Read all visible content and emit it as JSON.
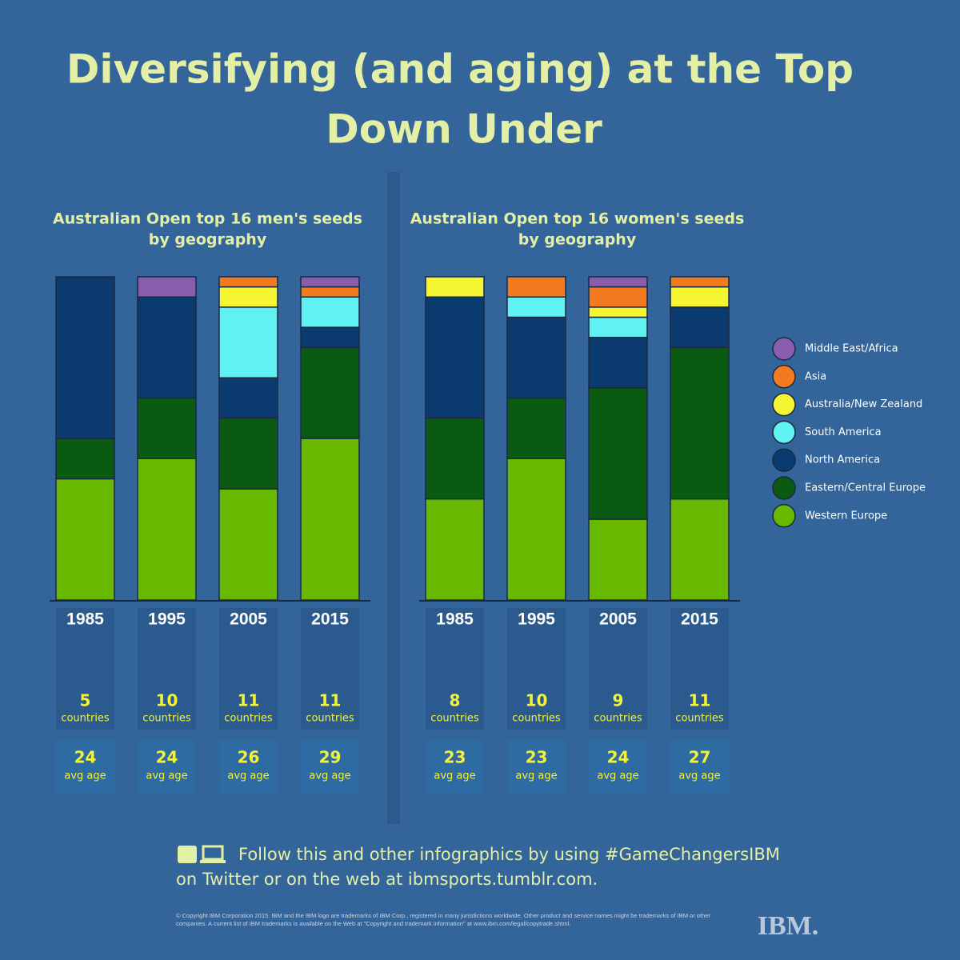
{
  "title": [
    "Diversifying (and aging) at the Top",
    "Down Under"
  ],
  "footer": [
    "Follow this and other infographics by using #GameChangersIBM",
    "on Twitter or on the web at ibmsports.tumblr.com."
  ],
  "copyright": "© Copyright IBM Corporation 2015. IBM and the IBM logo are trademarks of IBM Corp., registered in many jurisdictions worldwide. Other product and service names might be trademarks of IBM or other companies. A current list of IBM trademarks is available on the Web at \"Copyright and trademark information\" at www.ibm.com/legal/copytrade.shtml.",
  "logo": "IBM.",
  "chart_data": [
    {
      "type": "stacked_bar",
      "title": [
        "Australian Open top 16 men's seeds",
        "by geography"
      ],
      "categories": [
        "1985",
        "1995",
        "2005",
        "2015"
      ],
      "series": [
        {
          "name": "Middle East/Africa",
          "color": "#8a5cae",
          "values": [
            0,
            1,
            0,
            0.5
          ]
        },
        {
          "name": "Asia",
          "color": "#f47a20",
          "values": [
            0,
            0,
            0.5,
            0.5
          ]
        },
        {
          "name": "Australia/New Zealand",
          "color": "#f5f531",
          "values": [
            0,
            0,
            1,
            0
          ]
        },
        {
          "name": "South America",
          "color": "#60f2f2",
          "values": [
            0,
            0,
            3.5,
            1.5
          ]
        },
        {
          "name": "North America",
          "color": "#0b3a6e",
          "values": [
            8,
            5,
            2,
            1
          ]
        },
        {
          "name": "Eastern/Central Europe",
          "color": "#0a5a12",
          "values": [
            2,
            3,
            3.5,
            4.5
          ]
        },
        {
          "name": "Western Europe",
          "color": "#68b800",
          "values": [
            6,
            7,
            5.5,
            8
          ]
        }
      ],
      "countries": [
        5,
        10,
        11,
        11
      ],
      "countries_label": "countries",
      "avg_age": [
        24,
        24,
        26,
        29
      ],
      "avg_age_label": "avg age"
    },
    {
      "type": "stacked_bar",
      "title": [
        "Australian Open top 16 women's seeds",
        "by geography"
      ],
      "categories": [
        "1985",
        "1995",
        "2005",
        "2015"
      ],
      "series": [
        {
          "name": "Middle East/Africa",
          "color": "#8a5cae",
          "values": [
            0,
            0,
            0.5,
            0
          ]
        },
        {
          "name": "Asia",
          "color": "#f47a20",
          "values": [
            0,
            1,
            1,
            0.5
          ]
        },
        {
          "name": "Australia/New Zealand",
          "color": "#f5f531",
          "values": [
            1,
            0,
            0.5,
            1
          ]
        },
        {
          "name": "South America",
          "color": "#60f2f2",
          "values": [
            0,
            1,
            1,
            0
          ]
        },
        {
          "name": "North America",
          "color": "#0b3a6e",
          "values": [
            6,
            4,
            2.5,
            2
          ]
        },
        {
          "name": "Eastern/Central Europe",
          "color": "#0a5a12",
          "values": [
            4,
            3,
            6.5,
            7.5
          ]
        },
        {
          "name": "Western Europe",
          "color": "#68b800",
          "values": [
            5,
            7,
            4,
            5
          ]
        }
      ],
      "countries": [
        8,
        10,
        9,
        11
      ],
      "countries_label": "countries",
      "avg_age": [
        23,
        23,
        24,
        27
      ],
      "avg_age_label": "avg age"
    }
  ]
}
